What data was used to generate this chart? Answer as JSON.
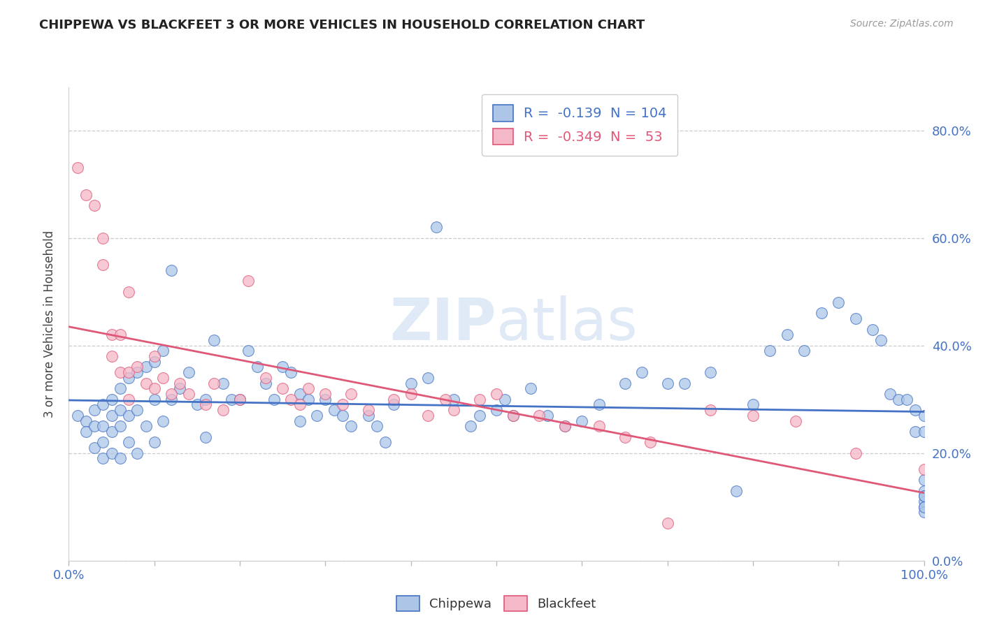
{
  "title": "CHIPPEWA VS BLACKFEET 3 OR MORE VEHICLES IN HOUSEHOLD CORRELATION CHART",
  "source": "Source: ZipAtlas.com",
  "ylabel": "3 or more Vehicles in Household",
  "watermark": "ZIPatlas",
  "legend_chippewa_r": "-0.139",
  "legend_chippewa_n": "104",
  "legend_blackfeet_r": "-0.349",
  "legend_blackfeet_n": "53",
  "chippewa_color": "#adc6e8",
  "blackfeet_color": "#f5b8c8",
  "chippewa_line_color": "#4472c4",
  "blackfeet_line_color": "#e05878",
  "background_color": "#ffffff",
  "xlim": [
    0.0,
    1.0
  ],
  "ylim": [
    0.0,
    0.88
  ],
  "x_ticks": [
    0.0,
    0.1,
    0.2,
    0.3,
    0.4,
    0.5,
    0.6,
    0.7,
    0.8,
    0.9,
    1.0
  ],
  "y_ticks": [
    0.0,
    0.2,
    0.4,
    0.6,
    0.8
  ],
  "chippewa_x": [
    0.01,
    0.02,
    0.02,
    0.03,
    0.03,
    0.03,
    0.04,
    0.04,
    0.04,
    0.04,
    0.05,
    0.05,
    0.05,
    0.05,
    0.06,
    0.06,
    0.06,
    0.06,
    0.07,
    0.07,
    0.07,
    0.08,
    0.08,
    0.08,
    0.09,
    0.09,
    0.1,
    0.1,
    0.1,
    0.11,
    0.11,
    0.12,
    0.12,
    0.13,
    0.14,
    0.15,
    0.16,
    0.16,
    0.17,
    0.18,
    0.19,
    0.2,
    0.21,
    0.22,
    0.23,
    0.24,
    0.25,
    0.26,
    0.27,
    0.27,
    0.28,
    0.29,
    0.3,
    0.31,
    0.32,
    0.33,
    0.35,
    0.36,
    0.37,
    0.38,
    0.4,
    0.42,
    0.43,
    0.45,
    0.47,
    0.48,
    0.5,
    0.51,
    0.52,
    0.54,
    0.56,
    0.58,
    0.6,
    0.62,
    0.65,
    0.67,
    0.7,
    0.72,
    0.75,
    0.78,
    0.8,
    0.82,
    0.84,
    0.86,
    0.88,
    0.9,
    0.92,
    0.94,
    0.95,
    0.96,
    0.97,
    0.98,
    0.99,
    0.99,
    1.0,
    1.0,
    1.0,
    1.0,
    1.0,
    1.0,
    1.0,
    1.0,
    1.0,
    1.0
  ],
  "chippewa_y": [
    0.27,
    0.26,
    0.24,
    0.28,
    0.25,
    0.21,
    0.29,
    0.25,
    0.22,
    0.19,
    0.3,
    0.27,
    0.24,
    0.2,
    0.32,
    0.28,
    0.25,
    0.19,
    0.34,
    0.27,
    0.22,
    0.35,
    0.28,
    0.2,
    0.36,
    0.25,
    0.37,
    0.3,
    0.22,
    0.39,
    0.26,
    0.54,
    0.3,
    0.32,
    0.35,
    0.29,
    0.3,
    0.23,
    0.41,
    0.33,
    0.3,
    0.3,
    0.39,
    0.36,
    0.33,
    0.3,
    0.36,
    0.35,
    0.31,
    0.26,
    0.3,
    0.27,
    0.3,
    0.28,
    0.27,
    0.25,
    0.27,
    0.25,
    0.22,
    0.29,
    0.33,
    0.34,
    0.62,
    0.3,
    0.25,
    0.27,
    0.28,
    0.3,
    0.27,
    0.32,
    0.27,
    0.25,
    0.26,
    0.29,
    0.33,
    0.35,
    0.33,
    0.33,
    0.35,
    0.13,
    0.29,
    0.39,
    0.42,
    0.39,
    0.46,
    0.48,
    0.45,
    0.43,
    0.41,
    0.31,
    0.3,
    0.3,
    0.28,
    0.24,
    0.27,
    0.24,
    0.11,
    0.1,
    0.13,
    0.12,
    0.09,
    0.15,
    0.12,
    0.1
  ],
  "blackfeet_x": [
    0.01,
    0.02,
    0.03,
    0.04,
    0.04,
    0.05,
    0.05,
    0.06,
    0.06,
    0.07,
    0.07,
    0.07,
    0.08,
    0.09,
    0.1,
    0.1,
    0.11,
    0.12,
    0.13,
    0.14,
    0.16,
    0.17,
    0.18,
    0.2,
    0.21,
    0.23,
    0.25,
    0.26,
    0.27,
    0.28,
    0.3,
    0.32,
    0.33,
    0.35,
    0.38,
    0.4,
    0.42,
    0.44,
    0.45,
    0.48,
    0.5,
    0.52,
    0.55,
    0.58,
    0.62,
    0.65,
    0.68,
    0.7,
    0.75,
    0.8,
    0.85,
    0.92,
    1.0
  ],
  "blackfeet_y": [
    0.73,
    0.68,
    0.66,
    0.6,
    0.55,
    0.42,
    0.38,
    0.42,
    0.35,
    0.5,
    0.35,
    0.3,
    0.36,
    0.33,
    0.38,
    0.32,
    0.34,
    0.31,
    0.33,
    0.31,
    0.29,
    0.33,
    0.28,
    0.3,
    0.52,
    0.34,
    0.32,
    0.3,
    0.29,
    0.32,
    0.31,
    0.29,
    0.31,
    0.28,
    0.3,
    0.31,
    0.27,
    0.3,
    0.28,
    0.3,
    0.31,
    0.27,
    0.27,
    0.25,
    0.25,
    0.23,
    0.22,
    0.07,
    0.28,
    0.27,
    0.26,
    0.2,
    0.17
  ]
}
